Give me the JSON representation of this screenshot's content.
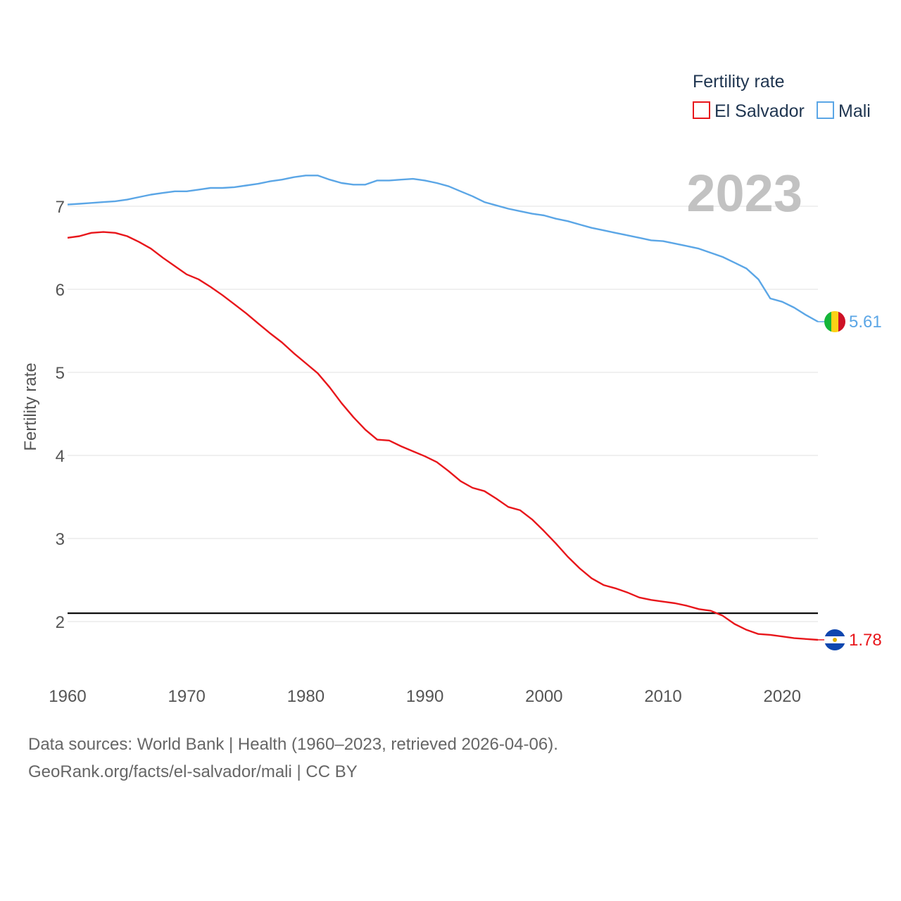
{
  "chart_data": {
    "type": "line",
    "legend_title": "Fertility rate",
    "ylabel": "Fertility rate",
    "xlabel": "",
    "current_year_label": "2023",
    "xlim": [
      1960,
      2023
    ],
    "ylim": [
      1.5,
      7.6
    ],
    "x_ticks": [
      1960,
      1970,
      1980,
      1990,
      2000,
      2010,
      2020
    ],
    "y_ticks": [
      2,
      3,
      4,
      5,
      6,
      7
    ],
    "reference_line": {
      "value": 2.1,
      "color": "#000000"
    },
    "legend_position": "top-right",
    "series": [
      {
        "name": "El Salvador",
        "color": "#e8161b",
        "end_label": "1.78",
        "flag": "el-salvador-flag",
        "x": [
          1960,
          1961,
          1962,
          1963,
          1964,
          1965,
          1966,
          1967,
          1968,
          1969,
          1970,
          1971,
          1972,
          1973,
          1974,
          1975,
          1976,
          1977,
          1978,
          1979,
          1980,
          1981,
          1982,
          1983,
          1984,
          1985,
          1986,
          1987,
          1988,
          1989,
          1990,
          1991,
          1992,
          1993,
          1994,
          1995,
          1996,
          1997,
          1998,
          1999,
          2000,
          2001,
          2002,
          2003,
          2004,
          2005,
          2006,
          2007,
          2008,
          2009,
          2010,
          2011,
          2012,
          2013,
          2014,
          2015,
          2016,
          2017,
          2018,
          2019,
          2020,
          2021,
          2022,
          2023
        ],
        "values": [
          6.62,
          6.64,
          6.68,
          6.69,
          6.68,
          6.64,
          6.57,
          6.49,
          6.38,
          6.28,
          6.18,
          6.12,
          6.03,
          5.93,
          5.82,
          5.71,
          5.59,
          5.47,
          5.36,
          5.23,
          5.11,
          4.99,
          4.82,
          4.63,
          4.46,
          4.31,
          4.19,
          4.18,
          4.11,
          4.05,
          3.99,
          3.92,
          3.81,
          3.69,
          3.61,
          3.57,
          3.48,
          3.38,
          3.34,
          3.23,
          3.09,
          2.94,
          2.78,
          2.64,
          2.52,
          2.44,
          2.4,
          2.35,
          2.29,
          2.26,
          2.24,
          2.22,
          2.19,
          2.15,
          2.13,
          2.07,
          1.97,
          1.9,
          1.85,
          1.84,
          1.82,
          1.8,
          1.79,
          1.78
        ]
      },
      {
        "name": "Mali",
        "color": "#5ba6e6",
        "end_label": "5.61",
        "flag": "mali-flag",
        "x": [
          1960,
          1961,
          1962,
          1963,
          1964,
          1965,
          1966,
          1967,
          1968,
          1969,
          1970,
          1971,
          1972,
          1973,
          1974,
          1975,
          1976,
          1977,
          1978,
          1979,
          1980,
          1981,
          1982,
          1983,
          1984,
          1985,
          1986,
          1987,
          1988,
          1989,
          1990,
          1991,
          1992,
          1993,
          1994,
          1995,
          1996,
          1997,
          1998,
          1999,
          2000,
          2001,
          2002,
          2003,
          2004,
          2005,
          2006,
          2007,
          2008,
          2009,
          2010,
          2011,
          2012,
          2013,
          2014,
          2015,
          2016,
          2017,
          2018,
          2019,
          2020,
          2021,
          2022,
          2023
        ],
        "values": [
          7.02,
          7.03,
          7.04,
          7.05,
          7.06,
          7.08,
          7.11,
          7.14,
          7.16,
          7.18,
          7.18,
          7.2,
          7.22,
          7.22,
          7.23,
          7.25,
          7.27,
          7.3,
          7.32,
          7.35,
          7.37,
          7.37,
          7.32,
          7.28,
          7.26,
          7.26,
          7.31,
          7.31,
          7.32,
          7.33,
          7.31,
          7.28,
          7.24,
          7.18,
          7.12,
          7.05,
          7.01,
          6.97,
          6.94,
          6.91,
          6.89,
          6.85,
          6.82,
          6.78,
          6.74,
          6.71,
          6.68,
          6.65,
          6.62,
          6.59,
          6.58,
          6.55,
          6.52,
          6.49,
          6.44,
          6.39,
          6.32,
          6.25,
          6.12,
          5.89,
          5.85,
          5.78,
          5.69,
          5.61
        ]
      }
    ]
  },
  "footer": {
    "source": "Data sources: World Bank | Health (1960–2023, retrieved 2026-04-06).",
    "attribution": "GeoRank.org/facts/el-salvador/mali | CC BY"
  }
}
